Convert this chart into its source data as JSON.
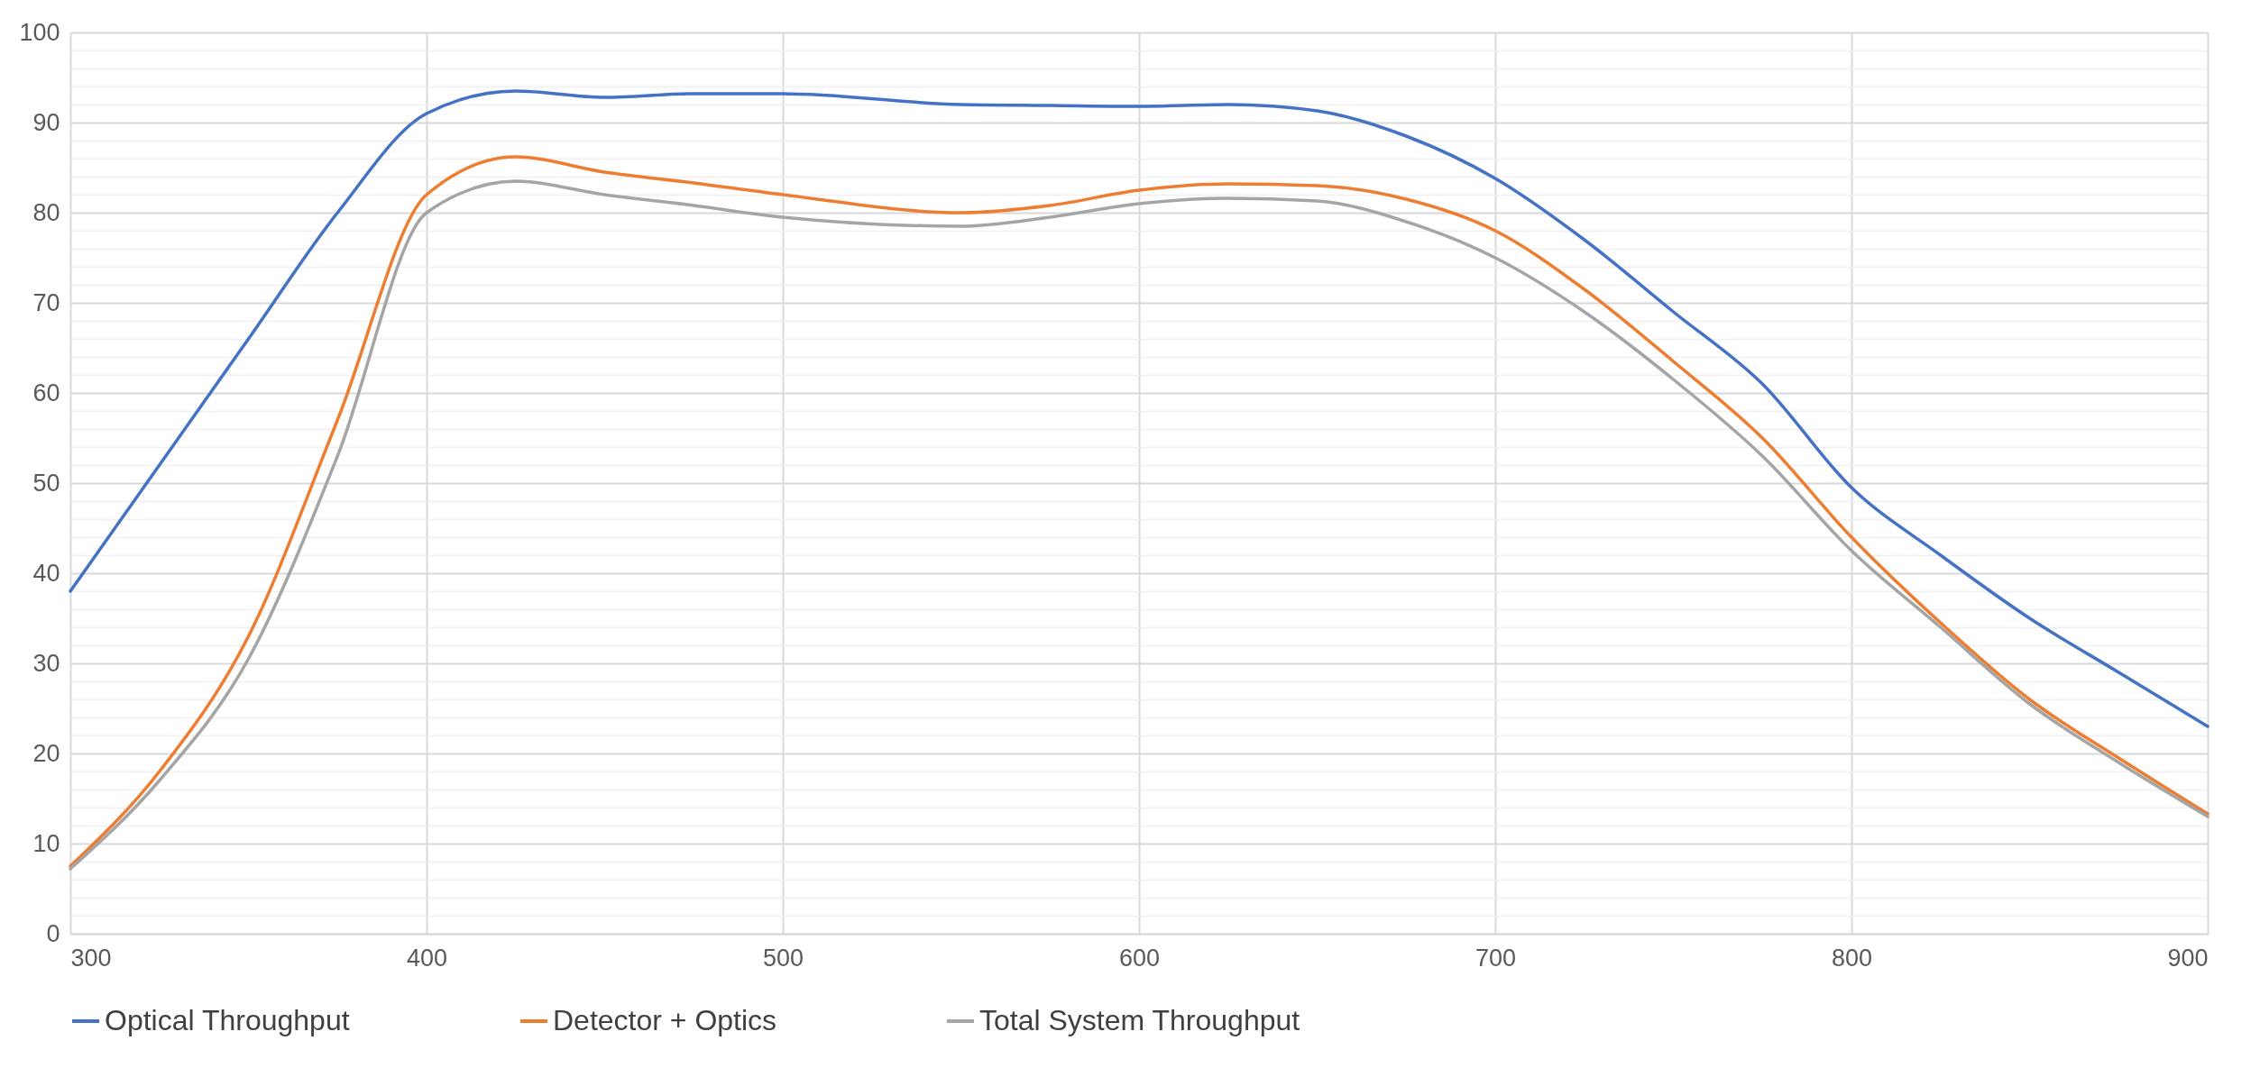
{
  "chart_data": {
    "type": "line",
    "x": [
      300,
      325,
      350,
      375,
      400,
      425,
      450,
      475,
      500,
      550,
      575,
      600,
      625,
      650,
      675,
      700,
      725,
      750,
      775,
      800,
      825,
      850,
      875,
      900
    ],
    "series": [
      {
        "name": "Optical Throughput",
        "color": "#4472c4",
        "values": [
          38,
          52,
          66,
          80,
          91,
          93.5,
          92.8,
          93.2,
          93.2,
          92,
          91.9,
          91.8,
          92,
          91.3,
          88.5,
          83.8,
          77,
          69,
          61,
          49.5,
          42,
          35,
          29,
          23
        ]
      },
      {
        "name": "Detector + Optics",
        "color": "#ed7d31",
        "values": [
          7.5,
          18,
          33,
          57,
          82,
          86.2,
          84.5,
          83.3,
          82,
          80,
          80.8,
          82.5,
          83.2,
          83,
          81.5,
          78,
          71.5,
          63.5,
          55,
          44,
          34.5,
          26,
          19.5,
          13.3
        ]
      },
      {
        "name": "Total System Throughput",
        "color": "#a5a5a5",
        "values": [
          7.2,
          17,
          30.5,
          53,
          80,
          83.5,
          82,
          80.8,
          79.5,
          78.5,
          79.5,
          81,
          81.6,
          81.3,
          79,
          75,
          69,
          61.5,
          53,
          42.5,
          34,
          25.5,
          19,
          13
        ]
      }
    ],
    "xlim": [
      300,
      900
    ],
    "xticks": [
      300,
      400,
      500,
      600,
      700,
      800,
      900
    ],
    "ylim": [
      0,
      100
    ],
    "yticks": [
      0,
      {
        "value": 2,
        "label": null
      },
      {
        "value": 4,
        "label": null
      },
      {
        "value": 6,
        "label": null
      },
      {
        "value": 8,
        "label": null
      },
      10,
      {
        "value": 12,
        "label": null
      },
      {
        "value": 14,
        "label": null
      },
      {
        "value": 16,
        "label": null
      },
      {
        "value": 18,
        "label": null
      },
      20,
      {
        "value": 22,
        "label": null
      },
      {
        "value": 24,
        "label": null
      },
      {
        "value": 26,
        "label": null
      },
      {
        "value": 28,
        "label": null
      },
      30,
      {
        "value": 32,
        "label": null
      },
      {
        "value": 34,
        "label": null
      },
      {
        "value": 36,
        "label": null
      },
      {
        "value": 38,
        "label": null
      },
      40,
      {
        "value": 42,
        "label": null
      },
      {
        "value": 44,
        "label": null
      },
      {
        "value": 46,
        "label": null
      },
      {
        "value": 48,
        "label": null
      },
      50,
      {
        "value": 52,
        "label": null
      },
      {
        "value": 54,
        "label": null
      },
      {
        "value": 56,
        "label": null
      },
      {
        "value": 58,
        "label": null
      },
      60,
      {
        "value": 62,
        "label": null
      },
      {
        "value": 64,
        "label": null
      },
      {
        "value": 66,
        "label": null
      },
      {
        "value": 68,
        "label": null
      },
      70,
      {
        "value": 72,
        "label": null
      },
      {
        "value": 74,
        "label": null
      },
      {
        "value": 76,
        "label": null
      },
      {
        "value": 78,
        "label": null
      },
      80,
      {
        "value": 82,
        "label": null
      },
      {
        "value": 84,
        "label": null
      },
      {
        "value": 86,
        "label": null
      },
      {
        "value": 88,
        "label": null
      },
      90,
      {
        "value": 92,
        "label": null
      },
      {
        "value": 94,
        "label": null
      },
      {
        "value": 96,
        "label": null
      },
      {
        "value": 98,
        "label": null
      },
      100
    ],
    "grid": true,
    "legend": "bottom",
    "marker": "none",
    "line_style": "solid"
  }
}
